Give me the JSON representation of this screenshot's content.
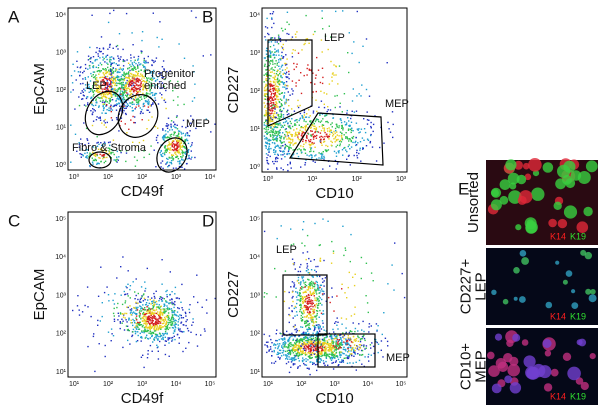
{
  "panels": [
    {
      "letter": "A",
      "y_label": "EpCAM",
      "x_label": "CD49f",
      "x_ticks": [
        "10⁰",
        "10¹",
        "10²",
        "10³",
        "10⁴"
      ],
      "y_ticks": [
        "10⁰",
        "10¹",
        "10²",
        "10³",
        "10⁴"
      ],
      "gates": [
        [
          "LEP"
        ],
        [
          "Progenitor",
          "enriched"
        ],
        [
          "MEP"
        ],
        [
          "Fibro & Stroma"
        ]
      ]
    },
    {
      "letter": "B",
      "y_label": "CD227",
      "x_label": "CD10",
      "x_ticks": [
        "10⁰",
        "10¹",
        "10²",
        "10³"
      ],
      "y_ticks": [
        "10⁰",
        "10¹",
        "10²",
        "10³",
        "10⁴"
      ],
      "gates": [
        [
          "LEP"
        ],
        [
          "MEP"
        ]
      ]
    },
    {
      "letter": "C",
      "y_label": "EpCAM",
      "x_label": "CD49f",
      "x_ticks": [
        "10¹",
        "10²",
        "10³",
        "10⁴",
        "10⁵"
      ],
      "y_ticks": [
        "10¹",
        "10²",
        "10³",
        "10⁴",
        "10⁵"
      ],
      "gates": []
    },
    {
      "letter": "D",
      "y_label": "CD227",
      "x_label": "CD10",
      "x_ticks": [
        "10¹",
        "10²",
        "10³",
        "10⁴",
        "10⁵"
      ],
      "y_ticks": [
        "10¹",
        "10²",
        "10³",
        "10⁴",
        "10⁵"
      ],
      "gates": [
        [
          "LEP"
        ],
        [
          "MEP"
        ]
      ]
    }
  ],
  "images": {
    "letter": "E",
    "rows": [
      [
        "Unsorted"
      ],
      [
        "CD227+",
        "LEP"
      ],
      [
        "CD10+",
        "MEP"
      ]
    ],
    "stain_red": "K14",
    "stain_green": "K19"
  }
}
